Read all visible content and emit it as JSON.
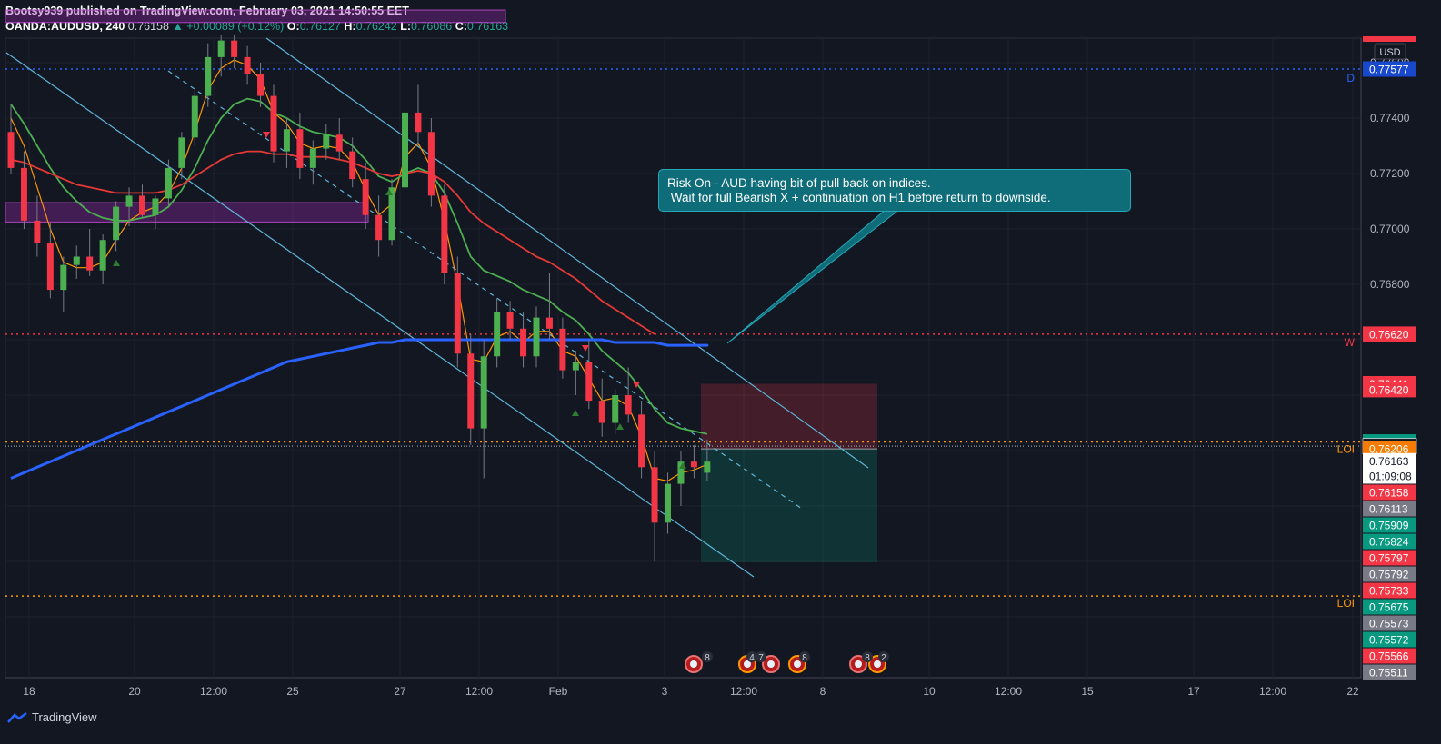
{
  "header": {
    "publisher_line": "Bootsy939 published on TradingView.com, February 03, 2021 14:50:55 EET",
    "symbol": "OANDA:AUDUSD, 240",
    "last": "0.76158",
    "change": "▲ +0.00089 (+0.12%)",
    "o_label": "O:",
    "o_value": "0.76127",
    "h_label": "H:",
    "h_value": "0.76242",
    "l_label": "L:",
    "l_value": "0.76086",
    "c_label": "C:",
    "c_value": "0.76163"
  },
  "annotation": {
    "line1": "Risk On - AUD having bit of pull back on indices.",
    "line2": " Wait for full Bearish X + continuation on H1 before return to downside."
  },
  "footer": {
    "brand": "TradingView"
  },
  "colors": {
    "background": "#131722",
    "up": "#4caf50",
    "down": "#f23645",
    "ma_fast": "#ff9800",
    "ma_mid": "#4caf50",
    "ma_slow": "#e53935",
    "ma_long": "#2962ff",
    "channel": "#5fb6d9",
    "supply_zone": "#9c27b0",
    "loi": "#ff9800",
    "weekly": "#f23645",
    "daily": "#2962ff"
  },
  "chart_data": {
    "type": "candlestick",
    "symbol": "OANDA:AUDUSD",
    "timeframe": "240",
    "currency": "USD",
    "ylim": [
      0.754,
      0.78
    ],
    "x_ticks": [
      "18",
      "20",
      "12:00",
      "25",
      "27",
      "12:00",
      "Feb",
      "3",
      "12:00",
      "8",
      "10",
      "12:00",
      "15",
      "17",
      "12:00",
      "22"
    ],
    "y_ticks": [
      "0.77600",
      "0.77400",
      "0.77200",
      "0.77000",
      "0.76800"
    ],
    "candles": [
      [
        0.7735,
        0.7745,
        0.772,
        0.7722
      ],
      [
        0.7722,
        0.7728,
        0.77,
        0.7703
      ],
      [
        0.7703,
        0.7712,
        0.769,
        0.7695
      ],
      [
        0.7695,
        0.7702,
        0.7675,
        0.7678
      ],
      [
        0.7678,
        0.769,
        0.767,
        0.7687
      ],
      [
        0.7687,
        0.7694,
        0.7682,
        0.769
      ],
      [
        0.769,
        0.77,
        0.7683,
        0.7685
      ],
      [
        0.7685,
        0.7698,
        0.768,
        0.7696
      ],
      [
        0.7696,
        0.771,
        0.7692,
        0.7708
      ],
      [
        0.7708,
        0.7715,
        0.7701,
        0.7712
      ],
      [
        0.7712,
        0.7716,
        0.7704,
        0.7705
      ],
      [
        0.7705,
        0.7712,
        0.77,
        0.7711
      ],
      [
        0.7711,
        0.7725,
        0.7708,
        0.7722
      ],
      [
        0.7722,
        0.7735,
        0.7718,
        0.7733
      ],
      [
        0.7733,
        0.775,
        0.773,
        0.7748
      ],
      [
        0.7748,
        0.7767,
        0.7744,
        0.7762
      ],
      [
        0.7762,
        0.777,
        0.7755,
        0.7768
      ],
      [
        0.7768,
        0.777,
        0.7758,
        0.7762
      ],
      [
        0.7762,
        0.7766,
        0.7752,
        0.7756
      ],
      [
        0.7756,
        0.776,
        0.7744,
        0.7748
      ],
      [
        0.7748,
        0.7752,
        0.7724,
        0.7728
      ],
      [
        0.7728,
        0.774,
        0.7722,
        0.7736
      ],
      [
        0.7736,
        0.7742,
        0.7718,
        0.7722
      ],
      [
        0.7722,
        0.7732,
        0.7716,
        0.7729
      ],
      [
        0.7729,
        0.7738,
        0.7725,
        0.7734
      ],
      [
        0.7734,
        0.774,
        0.7725,
        0.7728
      ],
      [
        0.7728,
        0.7733,
        0.7715,
        0.7718
      ],
      [
        0.7718,
        0.7724,
        0.77,
        0.7705
      ],
      [
        0.7705,
        0.7712,
        0.769,
        0.7696
      ],
      [
        0.7696,
        0.7718,
        0.7694,
        0.7715
      ],
      [
        0.7715,
        0.7748,
        0.7712,
        0.7742
      ],
      [
        0.7742,
        0.7752,
        0.773,
        0.7735
      ],
      [
        0.7735,
        0.774,
        0.7708,
        0.7712
      ],
      [
        0.7712,
        0.7716,
        0.768,
        0.7684
      ],
      [
        0.7684,
        0.769,
        0.765,
        0.7655
      ],
      [
        0.7655,
        0.7662,
        0.7622,
        0.7628
      ],
      [
        0.7628,
        0.766,
        0.761,
        0.7654
      ],
      [
        0.7654,
        0.7675,
        0.765,
        0.767
      ],
      [
        0.767,
        0.7674,
        0.766,
        0.7664
      ],
      [
        0.7664,
        0.767,
        0.765,
        0.7654
      ],
      [
        0.7654,
        0.7672,
        0.765,
        0.7668
      ],
      [
        0.7668,
        0.7684,
        0.766,
        0.7664
      ],
      [
        0.7664,
        0.7668,
        0.7646,
        0.7649
      ],
      [
        0.7649,
        0.7656,
        0.764,
        0.7652
      ],
      [
        0.7652,
        0.766,
        0.7635,
        0.7638
      ],
      [
        0.7638,
        0.7646,
        0.7625,
        0.763
      ],
      [
        0.763,
        0.7642,
        0.7626,
        0.764
      ],
      [
        0.764,
        0.765,
        0.763,
        0.7633
      ],
      [
        0.7633,
        0.7638,
        0.761,
        0.7614
      ],
      [
        0.7614,
        0.762,
        0.758,
        0.7594
      ],
      [
        0.7594,
        0.7612,
        0.759,
        0.7608
      ],
      [
        0.7608,
        0.762,
        0.76,
        0.7616
      ],
      [
        0.7616,
        0.7622,
        0.761,
        0.7614
      ],
      [
        0.7612,
        0.7624,
        0.7609,
        0.7616
      ]
    ],
    "moving_averages": [
      {
        "color": "ma_fast",
        "values": [
          0.774,
          0.773,
          0.7715,
          0.77,
          0.7688,
          0.7686,
          0.7686,
          0.7688,
          0.7696,
          0.7703,
          0.7706,
          0.7708,
          0.7713,
          0.7722,
          0.7735,
          0.775,
          0.7758,
          0.7761,
          0.7759,
          0.7754,
          0.7742,
          0.7738,
          0.7731,
          0.7729,
          0.773,
          0.7729,
          0.7724,
          0.7714,
          0.7705,
          0.7709,
          0.7726,
          0.7731,
          0.7722,
          0.7703,
          0.768,
          0.7653,
          0.7652,
          0.7661,
          0.7663,
          0.7659,
          0.7663,
          0.7663,
          0.7656,
          0.7654,
          0.7646,
          0.7638,
          0.7639,
          0.7636,
          0.7625,
          0.761,
          0.7609,
          0.7612,
          0.7613,
          0.7615
        ]
      },
      {
        "color": "ma_mid",
        "values": [
          0.7745,
          0.7738,
          0.773,
          0.7722,
          0.7715,
          0.771,
          0.7706,
          0.7704,
          0.7703,
          0.7703,
          0.7704,
          0.7705,
          0.7708,
          0.7714,
          0.7722,
          0.7732,
          0.774,
          0.7745,
          0.7747,
          0.7746,
          0.7742,
          0.774,
          0.7737,
          0.7735,
          0.7734,
          0.7733,
          0.773,
          0.7725,
          0.7719,
          0.7717,
          0.772,
          0.7722,
          0.772,
          0.7713,
          0.7702,
          0.769,
          0.7685,
          0.7683,
          0.7681,
          0.7678,
          0.7676,
          0.7674,
          0.767,
          0.7667,
          0.7662,
          0.7656,
          0.7652,
          0.7648,
          0.7642,
          0.7635,
          0.763,
          0.7628,
          0.7627,
          0.7626
        ]
      },
      {
        "color": "ma_slow",
        "values": [
          0.7725,
          0.7724,
          0.7722,
          0.772,
          0.7718,
          0.7716,
          0.7715,
          0.7714,
          0.7713,
          0.7713,
          0.7713,
          0.7713,
          0.7714,
          0.7716,
          0.7719,
          0.7722,
          0.7725,
          0.7727,
          0.7728,
          0.7728,
          0.7727,
          0.7727,
          0.7726,
          0.7726,
          0.7726,
          0.7725,
          0.7724,
          0.7722,
          0.772,
          0.7719,
          0.772,
          0.7721,
          0.772,
          0.7717,
          0.7712,
          0.7706,
          0.7702,
          0.7699,
          0.7696,
          0.7693,
          0.769,
          0.7688,
          0.7685,
          0.7682,
          0.7678,
          0.7674,
          0.7671,
          0.7668,
          0.7665,
          0.7662,
          null,
          null,
          null,
          null
        ]
      },
      {
        "color": "ma_long",
        "values": [
          0.761,
          0.7612,
          0.7614,
          0.7616,
          0.7618,
          0.762,
          0.7622,
          0.7624,
          0.7626,
          0.7628,
          0.763,
          0.7632,
          0.7634,
          0.7636,
          0.7638,
          0.764,
          0.7642,
          0.7644,
          0.7646,
          0.7648,
          0.765,
          0.7652,
          0.7653,
          0.7654,
          0.7655,
          0.7656,
          0.7657,
          0.7658,
          0.7659,
          0.7659,
          0.766,
          0.766,
          0.766,
          0.766,
          0.766,
          0.766,
          0.766,
          0.766,
          0.766,
          0.766,
          0.766,
          0.766,
          0.766,
          0.766,
          0.766,
          0.766,
          0.7659,
          0.7659,
          0.7659,
          0.7659,
          0.7658,
          0.7658,
          0.7658,
          0.7658
        ]
      }
    ],
    "horizontal_levels": [
      {
        "price": 0.77577,
        "label": "D",
        "color": "daily",
        "style": "dotted"
      },
      {
        "price": 0.7662,
        "label": "W",
        "color": "weekly",
        "style": "dotted"
      },
      {
        "price": 0.76231,
        "label": "LOI",
        "color": "loi",
        "style": "dotted"
      },
      {
        "price": 0.75675,
        "label": "LOI",
        "color": "loi",
        "style": "dotted"
      }
    ],
    "price_labels": [
      {
        "text": "0.77577",
        "bg": "#1848cc",
        "fg": "#ffffff",
        "price": 0.77577
      },
      {
        "text": "0.76620",
        "bg": "#f23645",
        "fg": "#ffffff",
        "price": 0.7662
      },
      {
        "text": "0.76441",
        "bg": "#f23645",
        "fg": "#ffffff",
        "price": 0.76441
      },
      {
        "text": "0.76420",
        "bg": "#f23645",
        "fg": "#ffffff",
        "price": 0.7642
      },
      {
        "text": "0.76231",
        "bg": "#089981",
        "fg": "#ffffff",
        "price": 0.76231
      },
      {
        "text": "0.76216",
        "bg": "#131722",
        "fg": "#ffffff",
        "price": 0.76216
      },
      {
        "text": "0.76206",
        "bg": "#f57c00",
        "fg": "#ffffff",
        "price": 0.76206
      },
      {
        "text": "0.76163",
        "bg": "#ffffff",
        "fg": "#131722",
        "price": 0.76163
      },
      {
        "text": "01:09:08",
        "bg": "#ffffff",
        "fg": "#131722",
        "price": 0.76141
      },
      {
        "text": "0.76158",
        "bg": "#f23645",
        "fg": "#ffffff",
        "price": 0.76119
      },
      {
        "text": "0.76113",
        "bg": "#787b86",
        "fg": "#ffffff",
        "price": 0.76097
      },
      {
        "text": "0.75909",
        "bg": "#089981",
        "fg": "#ffffff",
        "price": 0.76075
      },
      {
        "text": "0.75824",
        "bg": "#089981",
        "fg": "#ffffff",
        "price": 0.76053
      },
      {
        "text": "0.75797",
        "bg": "#f23645",
        "fg": "#ffffff",
        "price": 0.76031
      },
      {
        "text": "0.75792",
        "bg": "#787b86",
        "fg": "#ffffff",
        "price": 0.76009
      },
      {
        "text": "0.75733",
        "bg": "#f23645",
        "fg": "#ffffff",
        "price": 0.75987
      },
      {
        "text": "0.75675",
        "bg": "#089981",
        "fg": "#ffffff",
        "price": 0.75965
      },
      {
        "text": "0.75573",
        "bg": "#787b86",
        "fg": "#ffffff",
        "price": 0.75943
      },
      {
        "text": "0.75572",
        "bg": "#089981",
        "fg": "#ffffff",
        "price": 0.75921
      },
      {
        "text": "0.75566",
        "bg": "#f23645",
        "fg": "#ffffff",
        "price": 0.75899
      },
      {
        "text": "0.75511",
        "bg": "#787b86",
        "fg": "#ffffff",
        "price": 0.75877
      }
    ],
    "supply_zones": [
      {
        "top": 0.7779,
        "bottom": 0.77745
      },
      {
        "top": 0.77095,
        "bottom": 0.77025
      }
    ],
    "position": {
      "type": "short",
      "entry": 0.76206,
      "stop": 0.76441,
      "target": 0.75797
    },
    "event_badges": [
      "8",
      "4",
      "7",
      "8",
      "8",
      "2"
    ]
  }
}
